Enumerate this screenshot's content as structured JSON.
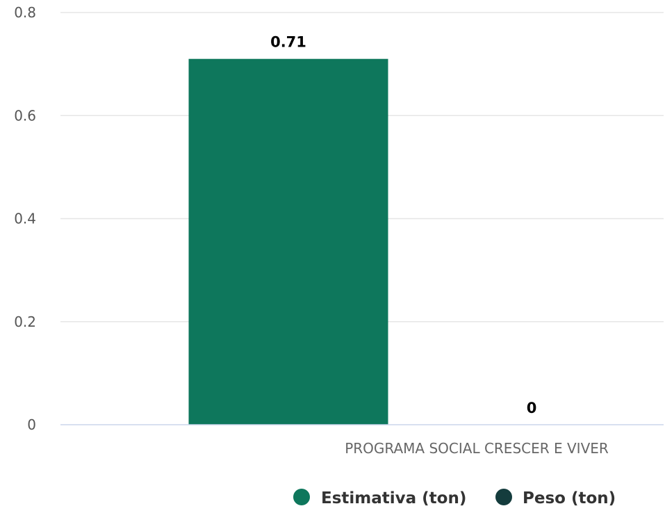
{
  "chart_data": {
    "type": "bar",
    "categories": [
      "PROGRAMA SOCIAL CRESCER E VIVER"
    ],
    "series": [
      {
        "name": "Estimativa (ton)",
        "values": [
          0.71
        ],
        "color": "#0e775c"
      },
      {
        "name": "Peso (ton)",
        "values": [
          0
        ],
        "color": "#143c3d"
      }
    ],
    "data_labels": [
      "0.71",
      "0"
    ],
    "y_ticks": [
      "0",
      "0.2",
      "0.4",
      "0.6",
      "0.8"
    ],
    "ylim": [
      0,
      0.8
    ],
    "grid": true,
    "legend_position": "bottom-center"
  }
}
